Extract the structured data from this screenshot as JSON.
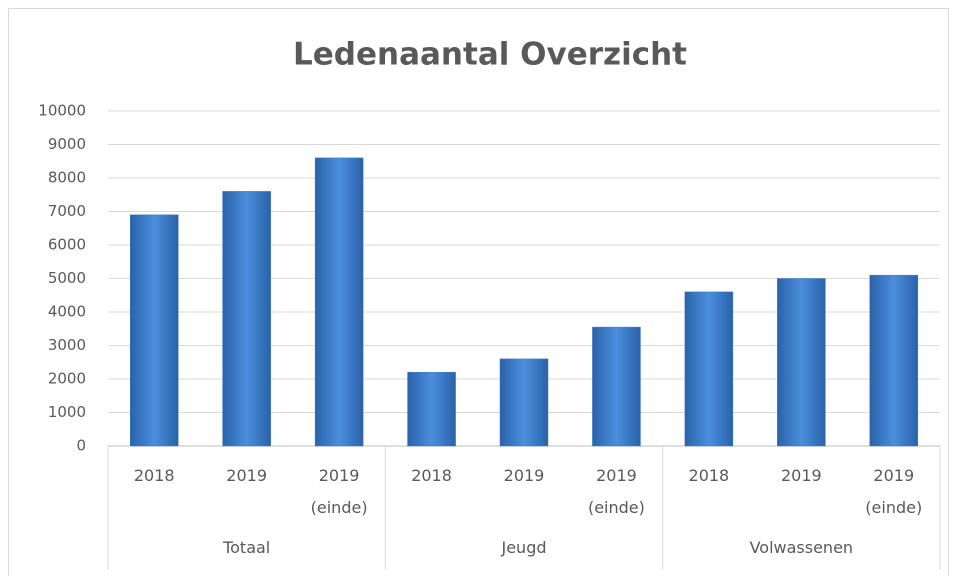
{
  "chart_data": {
    "type": "bar",
    "title": "Ledenaantal Overzicht",
    "categories": [
      "2018",
      "2019",
      "2019 (einde)",
      "2018",
      "2019",
      "2019 (einde)",
      "2018",
      "2019",
      "2019 (einde)"
    ],
    "group_labels": [
      "Totaal",
      "Jeugd",
      "Volwassenen"
    ],
    "values": [
      6900,
      7600,
      8600,
      2200,
      2600,
      3550,
      4600,
      5000,
      5100
    ],
    "color": "#3a7bc8",
    "ylim": [
      0,
      10000
    ],
    "yticks": [
      0,
      1000,
      2000,
      3000,
      4000,
      5000,
      6000,
      7000,
      8000,
      9000,
      10000
    ],
    "grid": true
  }
}
